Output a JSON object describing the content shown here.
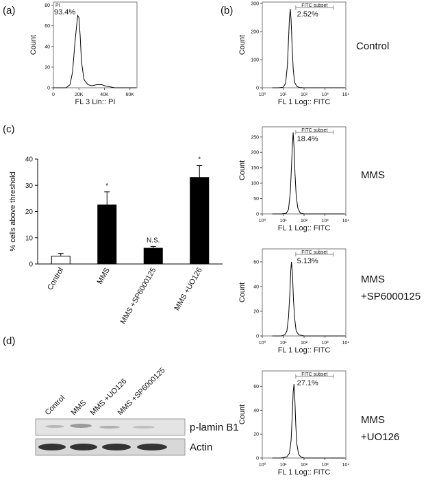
{
  "figure": {
    "panel_labels": [
      "(a)",
      "(b)",
      "(c)",
      "(d)"
    ],
    "conditions": [
      [
        "Control"
      ],
      [
        "MMS"
      ],
      [
        "MMS",
        "+SP6000125"
      ],
      [
        "MMS",
        "+UO126"
      ]
    ],
    "blot": {
      "columns": [
        "Control",
        "MMS",
        "MMS +UO126",
        "MMS +SP6000125"
      ],
      "rows": [
        "p-lamin B1",
        "Actin"
      ]
    }
  },
  "chart_data": [
    {
      "type": "line",
      "gate_label": "PI",
      "percent": "93.4%",
      "xlabel": "FL 3 Lin:: PI",
      "ylabel": "Count",
      "xlim": [
        0,
        65536
      ],
      "xticks": [
        0,
        {
          "value": 20000,
          "label": "20K"
        },
        {
          "value": 40000,
          "label": "40K"
        },
        {
          "value": 60000,
          "label": "60K"
        }
      ],
      "ylim": [
        0,
        83
      ],
      "yticks": [
        0,
        20,
        40,
        60,
        80
      ],
      "color": "#000000",
      "x": [
        0,
        5000,
        10000,
        13000,
        15000,
        17000,
        19000,
        20000,
        21000,
        22000,
        24000,
        27000,
        30000,
        34000,
        38000,
        40000,
        44000,
        48000,
        55000,
        65000
      ],
      "values": [
        0,
        0,
        0,
        3,
        15,
        45,
        70,
        68,
        50,
        25,
        8,
        3,
        2,
        3,
        3,
        2,
        1,
        0,
        0,
        0
      ]
    },
    {
      "type": "line",
      "log_x": true,
      "gate_label": "FITC subset",
      "percent": "2.52%",
      "gate": [
        40,
        2500
      ],
      "xlabel": "FL 1 Log:: FITC",
      "ylabel": "Count",
      "xlim": [
        1,
        10000
      ],
      "xticks": [
        {
          "value": 1,
          "label": "10⁰"
        },
        {
          "value": 10,
          "label": "10¹"
        },
        {
          "value": 100,
          "label": "10²"
        },
        {
          "value": 1000,
          "label": "10³"
        },
        {
          "value": 10000,
          "label": "10⁴"
        }
      ],
      "ylim": [
        0,
        305
      ],
      "yticks": [
        0,
        100,
        200,
        300
      ],
      "color": "#000000",
      "x": [
        3,
        6,
        10,
        13,
        16,
        18,
        20,
        22,
        24,
        27,
        30,
        35,
        45,
        60,
        100,
        1000,
        9000
      ],
      "values": [
        0,
        0,
        2,
        15,
        80,
        170,
        250,
        280,
        240,
        140,
        70,
        20,
        5,
        1,
        0,
        0,
        0
      ]
    },
    {
      "type": "line",
      "log_x": true,
      "gate_label": "FITC subset",
      "percent": "18.4%",
      "gate": [
        40,
        2500
      ],
      "xlabel": "FL 1 Log:: FITC",
      "ylabel": "Count",
      "xlim": [
        1,
        10000
      ],
      "xticks": [
        {
          "value": 1,
          "label": "10⁰"
        },
        {
          "value": 10,
          "label": "10¹"
        },
        {
          "value": 100,
          "label": "10²"
        },
        {
          "value": 1000,
          "label": "10³"
        },
        {
          "value": 10000,
          "label": "10⁴"
        }
      ],
      "ylim": [
        0,
        283
      ],
      "yticks": [
        0,
        50,
        100,
        150,
        200,
        250
      ],
      "color": "#000000",
      "x": [
        3,
        8,
        14,
        18,
        22,
        25,
        28,
        30,
        33,
        37,
        42,
        50,
        65,
        100,
        1000,
        9000
      ],
      "values": [
        0,
        0,
        2,
        15,
        70,
        150,
        230,
        265,
        220,
        130,
        60,
        20,
        3,
        0,
        0,
        0
      ]
    },
    {
      "type": "line",
      "log_x": true,
      "gate_label": "FITC subset",
      "percent": "5.13%",
      "gate": [
        40,
        2500
      ],
      "xlabel": "FL 1 Log:: FITC",
      "ylabel": "Count",
      "xlim": [
        1,
        10000
      ],
      "xticks": [
        {
          "value": 1,
          "label": "10⁰"
        },
        {
          "value": 10,
          "label": "10¹"
        },
        {
          "value": 100,
          "label": "10²"
        },
        {
          "value": 1000,
          "label": "10³"
        },
        {
          "value": 10000,
          "label": "10⁴"
        }
      ],
      "ylim": [
        0,
        70.5
      ],
      "yticks": [
        0,
        20,
        40,
        60
      ],
      "color": "#000000",
      "x": [
        3,
        8,
        12,
        15,
        18,
        21,
        23,
        25,
        28,
        31,
        35,
        42,
        55,
        100,
        1000,
        9000
      ],
      "values": [
        0,
        0,
        1,
        4,
        15,
        35,
        52,
        60,
        50,
        30,
        15,
        4,
        1,
        0,
        0,
        0
      ]
    },
    {
      "type": "line",
      "log_x": true,
      "gate_label": "FITC subset",
      "percent": "27.1%",
      "gate": [
        40,
        2500
      ],
      "xlabel": "FL 1 Log:: FITC",
      "ylabel": "Count",
      "xlim": [
        1,
        10000
      ],
      "xticks": [
        {
          "value": 1,
          "label": "10⁰"
        },
        {
          "value": 10,
          "label": "10¹"
        },
        {
          "value": 100,
          "label": "10²"
        },
        {
          "value": 1000,
          "label": "10³"
        },
        {
          "value": 10000,
          "label": "10⁴"
        }
      ],
      "ylim": [
        0,
        73
      ],
      "yticks": [
        0,
        20,
        40,
        60
      ],
      "color": "#000000",
      "x": [
        3,
        8,
        15,
        20,
        24,
        27,
        30,
        33,
        36,
        40,
        45,
        55,
        70,
        100,
        1000,
        9000
      ],
      "values": [
        0,
        0,
        1,
        4,
        15,
        35,
        55,
        62,
        50,
        28,
        12,
        3,
        1,
        0,
        0,
        0
      ]
    },
    {
      "type": "bar",
      "ylabel": "% cells above threshold",
      "categories": [
        "Control",
        "MMS",
        "MMS +SP6000125",
        "MMS +UO126"
      ],
      "values": [
        3,
        22.5,
        6,
        33
      ],
      "errors": [
        1,
        5,
        0.7,
        4.5
      ],
      "colors": [
        "#ffffff",
        "#000000",
        "#000000",
        "#000000"
      ],
      "significance": [
        null,
        "*",
        "N.S.",
        "*"
      ],
      "ylim": [
        0,
        40
      ],
      "yticks": [
        0,
        10,
        20,
        30,
        40
      ]
    }
  ]
}
